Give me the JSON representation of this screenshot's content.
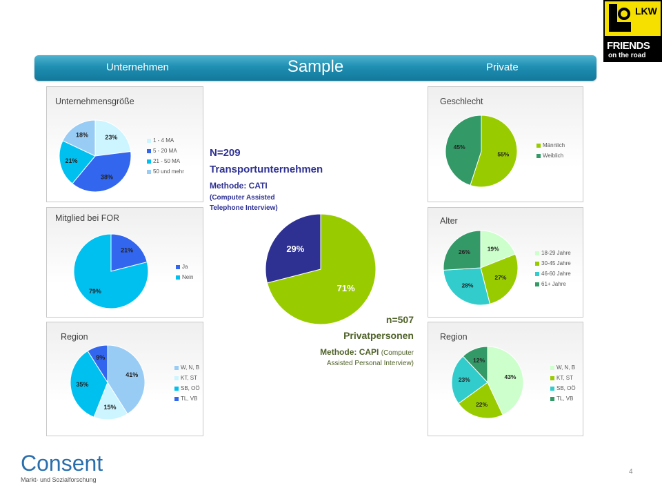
{
  "banner": {
    "left": "Unternehmen",
    "center": "Sample",
    "right": "Private"
  },
  "logo_lkw": {
    "top": "LKW",
    "mid": "FRIENDS",
    "bottom": "on the road"
  },
  "logo_consent": {
    "name": "Consent",
    "sub": "Markt- und Sozialforschung"
  },
  "page_number": "4",
  "info_companies": {
    "n": "N=209",
    "group": "Transportunternehmen",
    "method": "Methode: CATI",
    "method_detail_1": "(Computer Assisted",
    "method_detail_2": "Telephone Interview)"
  },
  "info_private": {
    "n": "n=507",
    "group": "Privatpersonen",
    "method_prefix": "Methode: CAPI",
    "method_detail_1": "(Computer",
    "method_detail_2": "Assisted Personal Interview)"
  },
  "chart_data": [
    {
      "type": "pie",
      "id": "company-size",
      "title": "Unternehmensgröße",
      "categories": [
        "1 - 4 MA",
        "5 - 20 MA",
        "21 - 50 MA",
        "50 und mehr"
      ],
      "values": [
        23,
        38,
        21,
        18
      ],
      "labels": [
        "23%",
        "38%",
        "21%",
        "18%"
      ],
      "colors": [
        "#ccf5ff",
        "#3366ee",
        "#00c0f0",
        "#99ccf5"
      ],
      "legend": "right"
    },
    {
      "type": "pie",
      "id": "for-member",
      "title": "Mitglied bei FOR",
      "categories": [
        "Ja",
        "Nein"
      ],
      "values": [
        21,
        79
      ],
      "labels": [
        "21%",
        "79%"
      ],
      "colors": [
        "#3366ee",
        "#00c0f0"
      ],
      "legend": "right"
    },
    {
      "type": "pie",
      "id": "region-companies",
      "title": "Region",
      "categories": [
        "W, N, B",
        "KT, ST",
        "SB, OÖ",
        "TL, VB"
      ],
      "values": [
        41,
        15,
        35,
        9
      ],
      "labels": [
        "41%",
        "15%",
        "35%",
        "9%"
      ],
      "colors": [
        "#99ccf5",
        "#ccf5ff",
        "#00c0f0",
        "#3366ee"
      ],
      "legend": "right"
    },
    {
      "type": "pie",
      "id": "total",
      "title": "",
      "categories": [
        "",
        ""
      ],
      "values": [
        71,
        29
      ],
      "labels": [
        "71%",
        "29%"
      ],
      "colors": [
        "#99cc00",
        "#2e3192"
      ]
    },
    {
      "type": "pie",
      "id": "gender",
      "title": "Geschlecht",
      "categories": [
        "Männlich",
        "Weiblich"
      ],
      "values": [
        55,
        45
      ],
      "labels": [
        "55%",
        "45%"
      ],
      "colors": [
        "#99cc00",
        "#339966"
      ],
      "legend": "right"
    },
    {
      "type": "pie",
      "id": "age",
      "title": "Alter",
      "categories": [
        "18-29 Jahre",
        "30-45 Jahre",
        "46-60 Jahre",
        "61+ Jahre"
      ],
      "values": [
        19,
        27,
        28,
        26
      ],
      "labels": [
        "19%",
        "27%",
        "28%",
        "26%"
      ],
      "colors": [
        "#ccffcc",
        "#99cc00",
        "#33cccc",
        "#339966"
      ],
      "legend": "right"
    },
    {
      "type": "pie",
      "id": "region-private",
      "title": "Region",
      "categories": [
        "W, N, B",
        "KT, ST",
        "SB, OÖ",
        "TL, VB"
      ],
      "values": [
        43,
        22,
        23,
        12
      ],
      "labels": [
        "43%",
        "22%",
        "23%",
        "12%"
      ],
      "colors": [
        "#ccffcc",
        "#99cc00",
        "#33cccc",
        "#339966"
      ],
      "legend": "right"
    }
  ]
}
